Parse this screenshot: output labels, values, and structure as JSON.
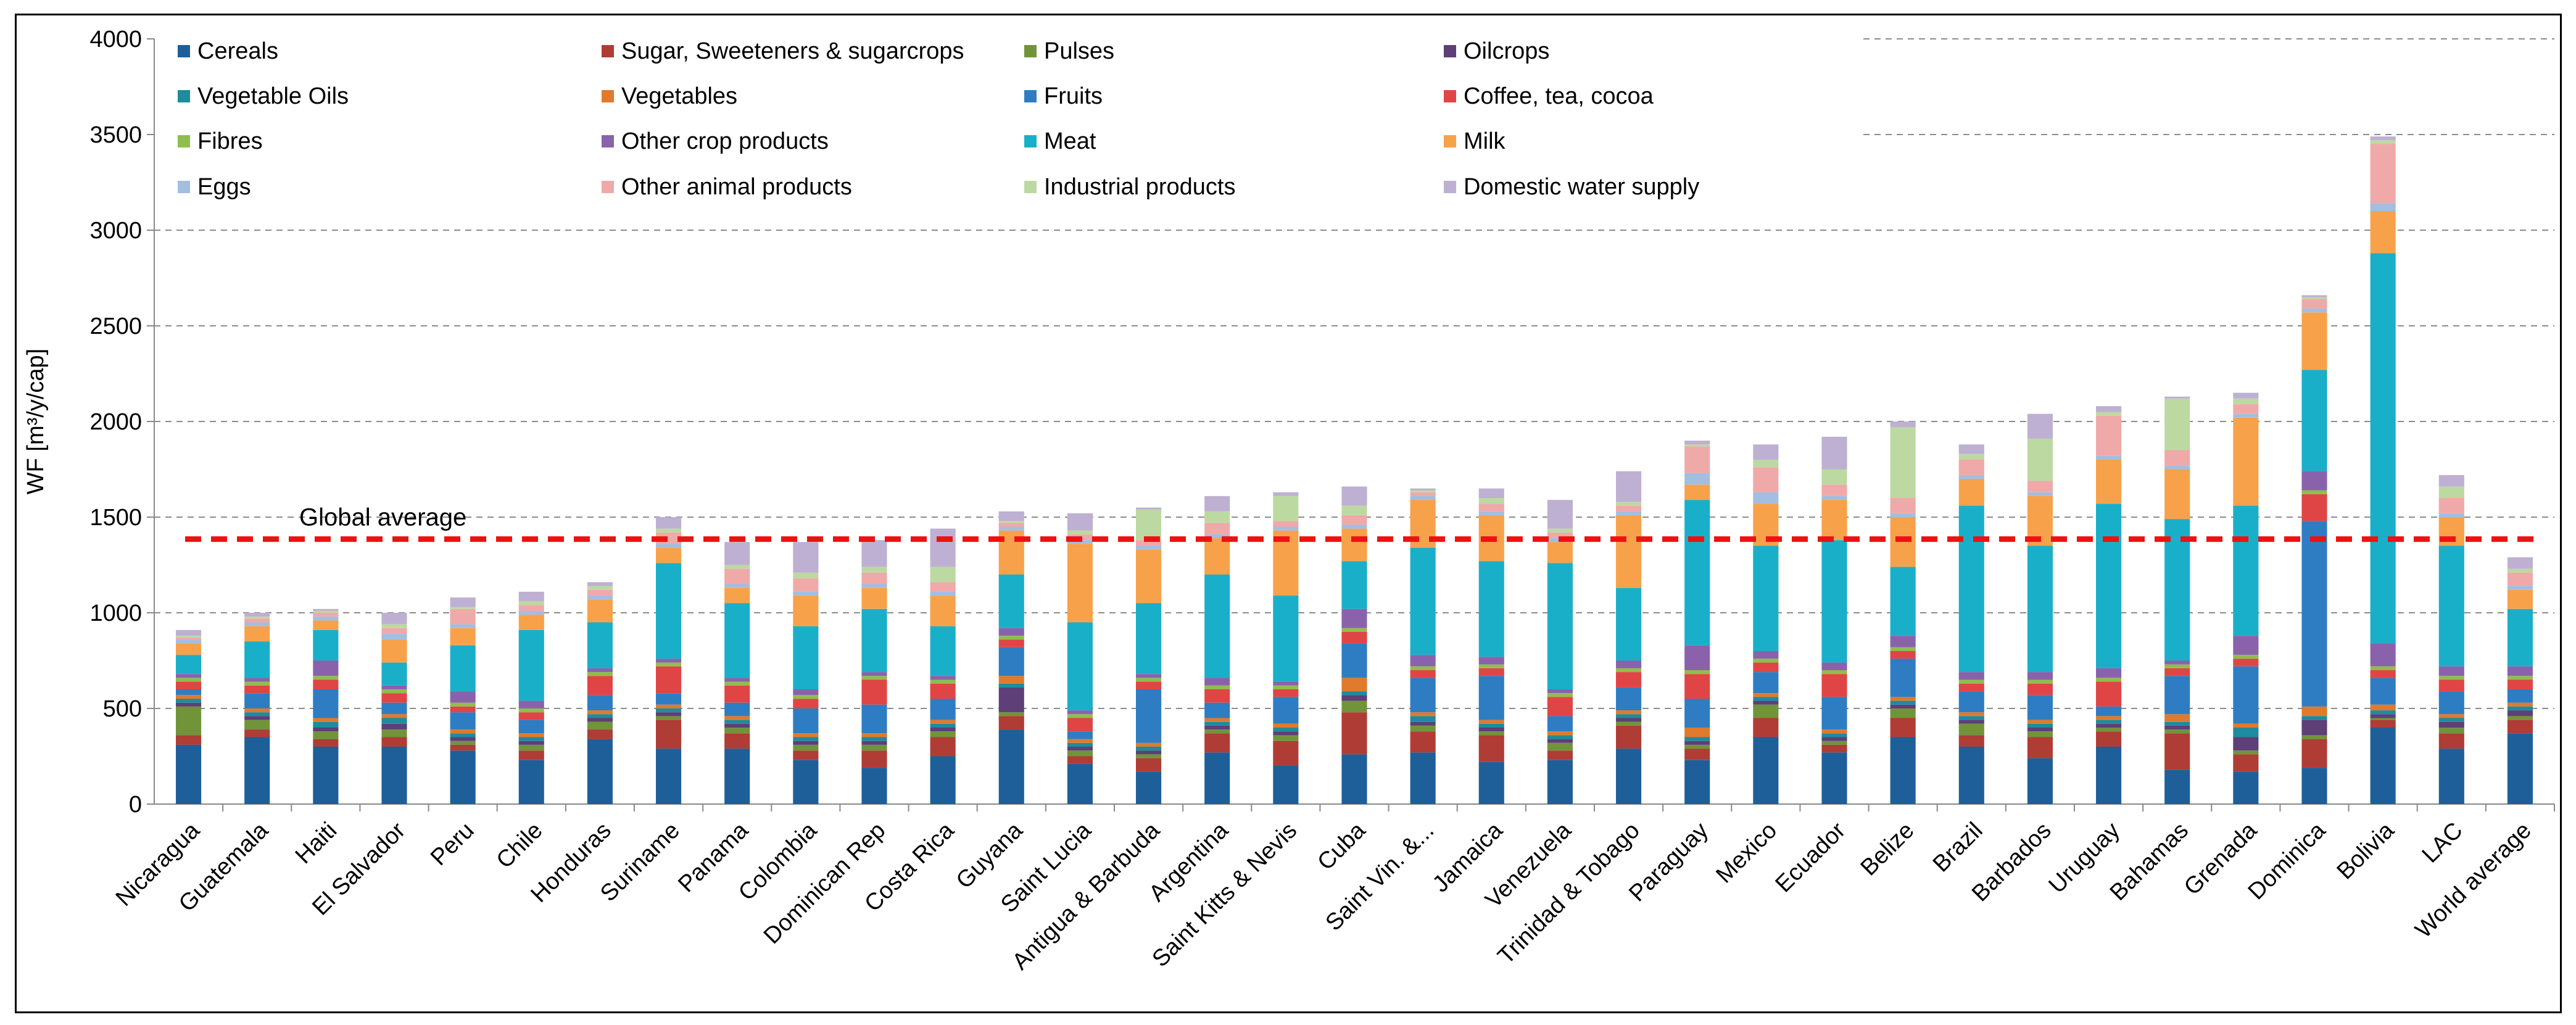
{
  "chart_data": {
    "type": "bar",
    "stacked": true,
    "title": "",
    "xlabel": "",
    "ylabel": "WF [m³/y/cap]",
    "ylim": [
      0,
      4000
    ],
    "yticks": [
      0,
      500,
      1000,
      1500,
      2000,
      2500,
      3000,
      3500,
      4000
    ],
    "grid": true,
    "legend_position": "top-left",
    "annotation": {
      "text": "Global average",
      "value": 1385
    },
    "categories": [
      "Nicaragua",
      "Guatemala",
      "Haiti",
      "El Salvador",
      "Peru",
      "Chile",
      "Honduras",
      "Suriname",
      "Panama",
      "Colombia",
      "Dominican Rep",
      "Costa Rica",
      "Guyana",
      "Saint Lucia",
      "Antigua & Barbuda",
      "Argentina",
      "Saint Kitts & Nevis",
      "Cuba",
      "Saint Vin. &...",
      "Jamaica",
      "Venezuela",
      "Trinidad & Tobago",
      "Paraguay",
      "Mexico",
      "Ecuador",
      "Belize",
      "Brazil",
      "Barbados",
      "Uruguay",
      "Bahamas",
      "Grenada",
      "Dominica",
      "Bolivia",
      "LAC",
      "World average"
    ],
    "series": [
      {
        "name": "Cereals",
        "color": "#1F5F99",
        "values": [
          310,
          350,
          300,
          300,
          280,
          230,
          340,
          290,
          290,
          230,
          190,
          250,
          390,
          210,
          170,
          270,
          200,
          260,
          270,
          220,
          230,
          290,
          230,
          350,
          270,
          350,
          300,
          240,
          300,
          180,
          170,
          190,
          400,
          290,
          370
        ]
      },
      {
        "name": "Sugar, Sweeteners &  sugarcrops",
        "color": "#B03C36",
        "values": [
          50,
          40,
          40,
          50,
          30,
          50,
          50,
          150,
          80,
          50,
          90,
          100,
          70,
          40,
          70,
          100,
          130,
          220,
          110,
          140,
          50,
          120,
          60,
          100,
          40,
          100,
          60,
          110,
          80,
          190,
          90,
          150,
          40,
          80,
          70
        ]
      },
      {
        "name": "Pulses",
        "color": "#71943A",
        "values": [
          150,
          50,
          40,
          40,
          20,
          30,
          40,
          20,
          30,
          30,
          30,
          30,
          20,
          30,
          20,
          20,
          30,
          60,
          30,
          20,
          40,
          20,
          20,
          70,
          20,
          50,
          60,
          30,
          20,
          20,
          20,
          20,
          10,
          30,
          20
        ]
      },
      {
        "name": "Oilcrops",
        "color": "#5E3F78",
        "values": [
          20,
          20,
          20,
          30,
          20,
          20,
          20,
          20,
          20,
          20,
          20,
          20,
          130,
          20,
          20,
          20,
          20,
          30,
          20,
          20,
          20,
          20,
          20,
          20,
          20,
          20,
          20,
          20,
          20,
          20,
          70,
          80,
          20,
          30,
          30
        ]
      },
      {
        "name": "Vegetable Oils",
        "color": "#1D8C9E",
        "values": [
          20,
          20,
          30,
          30,
          20,
          20,
          20,
          20,
          20,
          20,
          20,
          20,
          20,
          20,
          20,
          20,
          20,
          20,
          30,
          20,
          20,
          20,
          20,
          20,
          20,
          20,
          20,
          20,
          20,
          20,
          50,
          20,
          20,
          20,
          20
        ]
      },
      {
        "name": "Vegetables",
        "color": "#E07A2C",
        "values": [
          20,
          20,
          20,
          20,
          20,
          20,
          20,
          20,
          20,
          20,
          20,
          20,
          40,
          20,
          20,
          20,
          20,
          70,
          20,
          20,
          20,
          20,
          50,
          20,
          20,
          20,
          20,
          20,
          20,
          40,
          20,
          50,
          30,
          20,
          20
        ]
      },
      {
        "name": "Fruits",
        "color": "#2E7DC2",
        "values": [
          30,
          80,
          150,
          60,
          90,
          70,
          80,
          60,
          70,
          130,
          150,
          110,
          150,
          40,
          280,
          80,
          140,
          180,
          180,
          230,
          80,
          120,
          150,
          110,
          170,
          200,
          110,
          130,
          50,
          200,
          300,
          970,
          140,
          120,
          70
        ]
      },
      {
        "name": "Coffee, tea, cocoa",
        "color": "#E04545",
        "values": [
          40,
          40,
          50,
          50,
          30,
          40,
          100,
          140,
          90,
          50,
          130,
          80,
          40,
          70,
          40,
          70,
          40,
          60,
          40,
          40,
          100,
          80,
          130,
          50,
          120,
          40,
          40,
          60,
          130,
          40,
          40,
          140,
          40,
          60,
          50
        ]
      },
      {
        "name": "Fibres",
        "color": "#8FBE4C",
        "values": [
          20,
          20,
          20,
          20,
          20,
          20,
          20,
          20,
          20,
          20,
          20,
          20,
          20,
          20,
          20,
          20,
          20,
          20,
          20,
          20,
          20,
          20,
          20,
          20,
          20,
          20,
          20,
          20,
          20,
          20,
          20,
          20,
          20,
          20,
          20
        ]
      },
      {
        "name": "Other crop products",
        "color": "#8A62AC",
        "values": [
          20,
          20,
          80,
          20,
          60,
          40,
          20,
          20,
          20,
          30,
          20,
          20,
          40,
          20,
          20,
          40,
          20,
          100,
          60,
          40,
          20,
          40,
          130,
          40,
          40,
          60,
          40,
          40,
          50,
          20,
          100,
          100,
          120,
          50,
          50
        ]
      },
      {
        "name": "Meat",
        "color": "#1AAFC8",
        "values": [
          100,
          190,
          160,
          120,
          240,
          370,
          240,
          500,
          390,
          330,
          330,
          260,
          280,
          460,
          370,
          540,
          450,
          250,
          560,
          500,
          660,
          380,
          760,
          550,
          640,
          360,
          870,
          660,
          860,
          740,
          680,
          530,
          2040,
          630,
          300
        ]
      },
      {
        "name": "Milk",
        "color": "#F7A24A",
        "values": [
          60,
          80,
          50,
          120,
          90,
          80,
          120,
          80,
          80,
          160,
          110,
          160,
          230,
          410,
          280,
          190,
          340,
          170,
          250,
          240,
          110,
          380,
          80,
          220,
          210,
          260,
          140,
          260,
          230,
          260,
          460,
          300,
          220,
          150,
          100
        ]
      },
      {
        "name": "Eggs",
        "color": "#A2BEE0",
        "values": [
          20,
          20,
          20,
          30,
          20,
          20,
          20,
          20,
          20,
          20,
          20,
          20,
          20,
          20,
          20,
          20,
          20,
          20,
          20,
          20,
          20,
          20,
          60,
          60,
          20,
          20,
          20,
          20,
          20,
          20,
          20,
          20,
          40,
          20,
          20
        ]
      },
      {
        "name": "Other animal products",
        "color": "#EFA9A9",
        "values": [
          10,
          20,
          20,
          30,
          80,
          30,
          30,
          60,
          80,
          70,
          60,
          50,
          20,
          30,
          30,
          60,
          30,
          50,
          20,
          40,
          30,
          30,
          140,
          130,
          60,
          80,
          80,
          60,
          210,
          80,
          50,
          50,
          310,
          80,
          70
        ]
      },
      {
        "name": "Industrial products",
        "color": "#BDD9A2",
        "values": [
          10,
          10,
          10,
          20,
          10,
          20,
          20,
          20,
          20,
          30,
          30,
          80,
          10,
          20,
          160,
          60,
          130,
          50,
          10,
          30,
          20,
          20,
          10,
          40,
          80,
          370,
          30,
          220,
          20,
          270,
          30,
          10,
          20,
          60,
          20
        ]
      },
      {
        "name": "Domestic water supply",
        "color": "#BEB0D2",
        "values": [
          30,
          20,
          10,
          60,
          50,
          50,
          20,
          60,
          120,
          160,
          140,
          200,
          50,
          90,
          10,
          80,
          20,
          100,
          10,
          50,
          150,
          160,
          20,
          80,
          170,
          30,
          50,
          130,
          30,
          10,
          30,
          10,
          20,
          60,
          60
        ]
      }
    ]
  }
}
